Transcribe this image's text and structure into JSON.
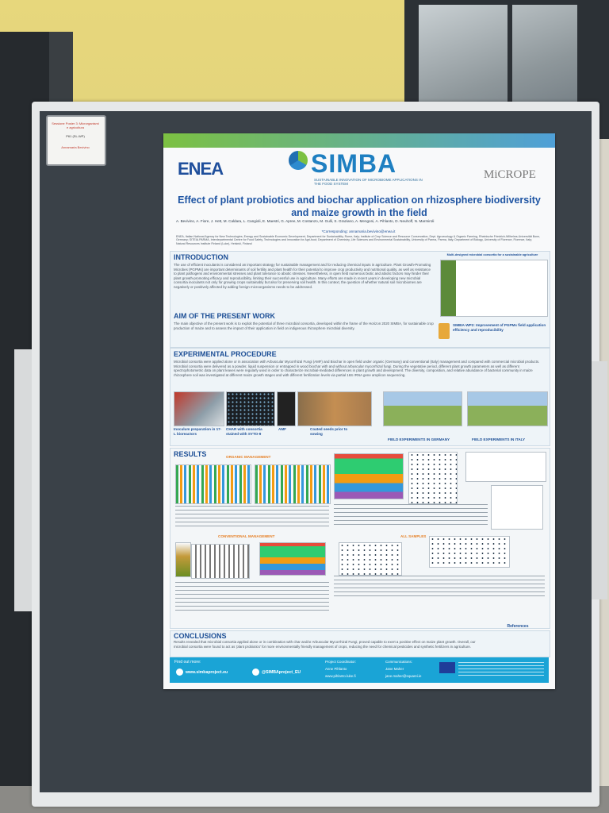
{
  "label_card": {
    "line1": "Sessione Poster 3: Microrganismi e agricoltura",
    "line2": "P61 (SL-WP)",
    "line3": "Annamaria Bevivino"
  },
  "poster": {
    "enea_logo": "ENEA",
    "simba_logo": "SIMBA",
    "simba_subtitle": "SUSTAINABLE INNOVATION OF MICROBIOME APPLICATIONS IN THE FOOD SYSTEM",
    "microppe_logo": "MiCROPE",
    "title": "Effect of plant probiotics and biochar application on rhizosphere biodiversity and maize growth in the field",
    "authors": "A. Bevivino, A. Fiore, J. Hett, M. Caldara, L. Cangioli, E. Maestri, G. Apree, M. Costanzo, M. Gulli, S. Graziano, A. Mengoni, A. Pihlanto, D. Neuhoff, N. Marmiroli",
    "corresponding": "*Corresponding: annamaria.bevivino@enea.it",
    "affiliations": "ENEA, Italian National Agency for New Technologies, Energy and Sustainable Economic Development, Department for Sustainability, Rome, Italy; Institute of Crop Science and Resource Conservation, Dept. Agroecology & Organic Farming, Rheinische Friedrich-Wilhelms-Universität Bonn, Germany; SITEIA.PARMA, Interdepartmental Centre for Food Safety, Technologies and Innovation for Agri-food; Department of Chemistry, Life Sciences and Environmental Sustainability, University of Parma, Parma, Italy; Department of Biology, University of Florence, Florence, Italy; Natural Resources Institute Finland (Luke), Helsinki, Finland",
    "introduction": {
      "heading": "INTRODUCTION",
      "text": "The use of efficient inoculants is considered an important strategy for sustainable management and for reducing chemical inputs in agriculture. Plant Growth-Promoting Microbes (PGPMs) are important determinants of soil fertility and plant health for their potential to improve crop productivity and nutritional quality, as well as resistance to plant pathogens and environmental stresses and plant tolerance to abiotic stresses. Nevertheless, in open field numerous biotic and abiotic factors may hinder their plant growth-promoting efficacy and reproducibility, limiting their successful use in agriculture. Many efforts are made in recent years in developing new microbial consortia inoculants not only for growing crops sustainably but also for preserving soil health. In this context, the question of whether natural soil microbiomes are negatively or positively affected by adding foreign microorganisms needs to be addressed.",
      "figure_caption": "Multi-designed microbial consortia for a sustainable agriculture"
    },
    "aim": {
      "heading": "AIM OF THE PRESENT WORK",
      "text": "The main objective of the present work is to exploit the potential of three microbial consortia, developed within the frame of the Horizon 2020 SIMBA, for sustainable crop production of maize and to assess the impact of their application in field on indigenous rhizosphere microbial diversity.",
      "wp_note": "SIMBA-WP2: Improvement of PGPMs field application efficiency and reproducibility"
    },
    "experimental": {
      "heading": "EXPERIMENTAL PROCEDURE",
      "text": "Microbial consortia were applied alone or in association with Arbuscular Mycorrhizal Fungi (AMF) and Biochar in open field under organic (Germany) and conventional (Italy) management and compared with commercial microbial products. Microbial consortia were delivered as a powder, liquid suspension or entrapped in wood biochar with and without arbuscular mycorrhizal fungi. During the vegetative period, different plant growth parameters as well as different spectrophotometric data on plant leaves were regularly used in order to characterize microbial-mediated differences in plant growth and development. The diversity, composition, and relative abundance of bacterial community in maize rhizosphere soil was investigated at different maize growth stages and with different fertilization levels via partial 16S rRNA gene amplicon sequencing.",
      "captions": [
        "Inoculum preparation in 17-L bioreactors",
        "CHAR with consortia stained with SYTO-9",
        "AMF",
        "Coated seeds prior to sowing",
        "FIELD EXPERIMENTS IN GERMANY",
        "FIELD EXPERIMENTS IN ITALY"
      ]
    },
    "results": {
      "heading": "RESULTS",
      "organic_label": "ORGANIC MANAGEMENT",
      "conventional_label": "CONVENTIONAL MANAGEMENT",
      "all_samples_label": "ALL SAMPLES"
    },
    "conclusions": {
      "heading": "CONCLUSIONS",
      "text": "Results revealed that microbial consortia applied alone or in combination with char and/or Arbuscular Mycorrhizal Fungi, proved capable to exert a positive effect on maize plant growth. Overall, our microbial consortia were found to act as 'plant probiotics' for more environmentally friendly management of crops, reducing the need for chemical pesticides and synthetic fertilizers in agriculture.",
      "references": "References"
    },
    "footer": {
      "find_out_more": "Find out more:",
      "website": "www.simbaproject.eu",
      "twitter": "@SIMBAproject_EU",
      "coordinator_label": "Project Coordinator:",
      "coordinator": "Anne Pihlanto",
      "coordinator_site": "www.pihlanto.luke.fi",
      "comms_label": "Communications:",
      "comms": "Jane Maher",
      "comms_site": "jane.maher@squarei.ie"
    }
  }
}
